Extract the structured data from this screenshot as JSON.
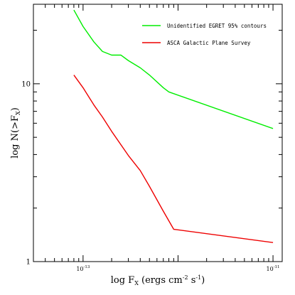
{
  "chart_data": {
    "type": "line",
    "title": "",
    "xlabel": {
      "base": "log F",
      "sub": "X",
      "rest": " (ergs cm",
      "sup1": "-2",
      "mid": " s",
      "sup2": "-1",
      "end": ")"
    },
    "ylabel": {
      "base": "log N(>F",
      "sub": "X",
      "end": ")"
    },
    "xscale": "log",
    "yscale": "log",
    "xlim": [
      3e-14,
      1.25e-11
    ],
    "ylim": [
      1,
      28
    ],
    "x_ticks": [
      {
        "value": 1e-13,
        "mantissa": "10",
        "exp": "-13"
      },
      {
        "value": 1e-11,
        "mantissa": "10",
        "exp": "-11"
      }
    ],
    "y_ticks": [
      {
        "value": 1,
        "label": "1"
      },
      {
        "value": 10,
        "label": "10"
      }
    ],
    "grid": false,
    "legend": "top-right",
    "series": [
      {
        "name": "Unidentified EGRET 95% contours",
        "color": "#00ee00",
        "points": [
          [
            8e-14,
            26
          ],
          [
            1e-13,
            21
          ],
          [
            1.3e-13,
            17.2
          ],
          [
            1.6e-13,
            15.2
          ],
          [
            2e-13,
            14.5
          ],
          [
            2.5e-13,
            14.5
          ],
          [
            3e-13,
            13.5
          ],
          [
            4e-13,
            12.3
          ],
          [
            5e-13,
            11.2
          ],
          [
            7e-13,
            9.5
          ],
          [
            8e-13,
            9.0
          ],
          [
            1e-11,
            5.6
          ]
        ]
      },
      {
        "name": "ASCA Galactic Plane Survey",
        "color": "#ee0000",
        "points": [
          [
            8e-14,
            11.2
          ],
          [
            1e-13,
            9.5
          ],
          [
            1.3e-13,
            7.6
          ],
          [
            1.6e-13,
            6.5
          ],
          [
            2e-13,
            5.4
          ],
          [
            3e-13,
            3.95
          ],
          [
            4e-13,
            3.25
          ],
          [
            5e-13,
            2.65
          ],
          [
            7e-13,
            1.92
          ],
          [
            9e-13,
            1.52
          ],
          [
            1e-11,
            1.28
          ]
        ]
      }
    ]
  }
}
